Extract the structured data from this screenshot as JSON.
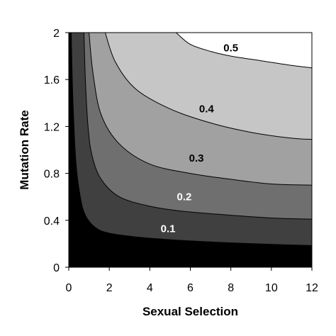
{
  "chart_data": {
    "type": "contour",
    "title": "",
    "xlabel": "Sexual Selection",
    "ylabel": "Mutation Rate",
    "xlim": [
      0,
      12
    ],
    "ylim": [
      0,
      2
    ],
    "x_ticks": [
      "0",
      "2",
      "4",
      "6",
      "8",
      "10",
      "12"
    ],
    "y_ticks": [
      "0",
      "0.4",
      "0.8",
      "1.2",
      "1.6",
      "2"
    ],
    "grid": false,
    "legend": "none",
    "fill_colors": [
      "#000000",
      "#404040",
      "#6f6f6f",
      "#a1a1a1",
      "#c6c6c6",
      "#ffffff"
    ],
    "contours": [
      {
        "level": "0.1",
        "label_color": "#ffffff",
        "points": [
          [
            0.12,
            2.0
          ],
          [
            0.2,
            1.45
          ],
          [
            0.35,
            0.9
          ],
          [
            0.55,
            0.62
          ],
          [
            0.8,
            0.45
          ],
          [
            1.3,
            0.34
          ],
          [
            2.0,
            0.29
          ],
          [
            3.5,
            0.255
          ],
          [
            5.0,
            0.235
          ],
          [
            6.5,
            0.22
          ],
          [
            8.0,
            0.208
          ],
          [
            10.0,
            0.195
          ],
          [
            12.0,
            0.185
          ]
        ]
      },
      {
        "level": "0.2",
        "label_color": "#ffffff",
        "points": [
          [
            0.75,
            2.0
          ],
          [
            0.82,
            1.6
          ],
          [
            0.95,
            1.2
          ],
          [
            1.15,
            0.95
          ],
          [
            1.6,
            0.75
          ],
          [
            2.5,
            0.6
          ],
          [
            4.0,
            0.52
          ],
          [
            5.5,
            0.48
          ],
          [
            7.5,
            0.45
          ],
          [
            10.0,
            0.42
          ],
          [
            12.0,
            0.41
          ]
        ]
      },
      {
        "level": "0.3",
        "label_color": "#000000",
        "points": [
          [
            1.0,
            2.0
          ],
          [
            1.2,
            1.65
          ],
          [
            1.6,
            1.3
          ],
          [
            2.5,
            1.05
          ],
          [
            4.0,
            0.88
          ],
          [
            6.0,
            0.8
          ],
          [
            8.0,
            0.75
          ],
          [
            10.0,
            0.71
          ],
          [
            12.0,
            0.7
          ]
        ]
      },
      {
        "level": "0.4",
        "label_color": "#000000",
        "points": [
          [
            1.8,
            2.0
          ],
          [
            2.3,
            1.75
          ],
          [
            3.3,
            1.52
          ],
          [
            5.0,
            1.35
          ],
          [
            7.0,
            1.23
          ],
          [
            9.0,
            1.15
          ],
          [
            11.0,
            1.1
          ],
          [
            12.0,
            1.09
          ]
        ]
      },
      {
        "level": "0.5",
        "label_color": "#000000",
        "points": [
          [
            5.3,
            2.0
          ],
          [
            6.0,
            1.9
          ],
          [
            7.0,
            1.84
          ],
          [
            8.0,
            1.8
          ],
          [
            9.5,
            1.76
          ],
          [
            11.0,
            1.72
          ],
          [
            12.0,
            1.7
          ]
        ]
      }
    ],
    "contour_label_positions": [
      {
        "level": "0.1",
        "x": 4.9,
        "y": 0.3
      },
      {
        "level": "0.2",
        "x": 5.7,
        "y": 0.57
      },
      {
        "level": "0.3",
        "x": 6.3,
        "y": 0.9
      },
      {
        "level": "0.4",
        "x": 6.8,
        "y": 1.32
      },
      {
        "level": "0.5",
        "x": 8.0,
        "y": 1.84
      }
    ]
  }
}
